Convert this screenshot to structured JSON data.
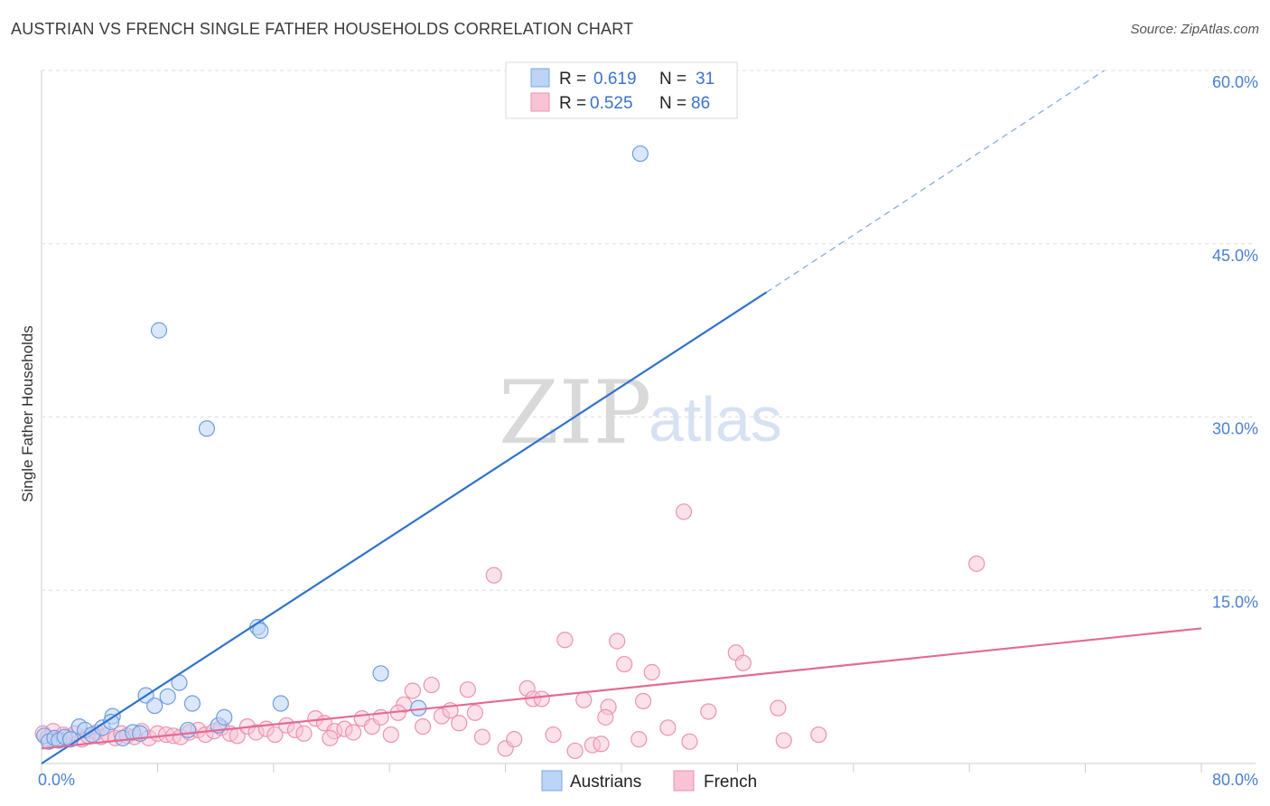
{
  "title": "AUSTRIAN VS FRENCH SINGLE FATHER HOUSEHOLDS CORRELATION CHART",
  "source": "Source: ZipAtlas.com",
  "watermark": {
    "zip": "ZIP",
    "atlas": "atlas"
  },
  "colors": {
    "austrians": "#3a78d4",
    "austrians_fill": "#bcd4f5",
    "french": "#e8759b",
    "french_fill": "#f8c3d4",
    "tick": "#4a7fd4",
    "grid": "#dddddd"
  },
  "chart_data": {
    "type": "scatter",
    "xlabel": "",
    "ylabel": "Single Father Households",
    "xlim": [
      0,
      80
    ],
    "ylim": [
      0,
      60
    ],
    "grid": true,
    "x_tick_labels": [
      {
        "value": 0,
        "label": "0.0%"
      },
      {
        "value": 80,
        "label": "80.0%"
      }
    ],
    "y_tick_labels": [
      {
        "value": 15,
        "label": "15.0%"
      },
      {
        "value": 30,
        "label": "30.0%"
      },
      {
        "value": 45,
        "label": "45.0%"
      },
      {
        "value": 60,
        "label": "60.0%"
      }
    ],
    "legend": [
      {
        "name": "Austrians",
        "r_label": "R =",
        "r": "0.619",
        "n_label": "N =",
        "n": "31"
      },
      {
        "name": "French",
        "r_label": "R =",
        "r": "0.525",
        "n_label": "N =",
        "n": "86"
      }
    ],
    "series": [
      {
        "name": "Austrians",
        "points": [
          [
            0.2,
            2.4
          ],
          [
            0.5,
            1.9
          ],
          [
            0.9,
            2.2
          ],
          [
            1.2,
            2.0
          ],
          [
            1.6,
            2.3
          ],
          [
            2.0,
            2.1
          ],
          [
            2.6,
            3.2
          ],
          [
            3.0,
            2.9
          ],
          [
            3.5,
            2.5
          ],
          [
            4.2,
            3.1
          ],
          [
            4.9,
            4.1
          ],
          [
            5.6,
            2.2
          ],
          [
            6.3,
            2.7
          ],
          [
            6.8,
            2.6
          ],
          [
            7.2,
            5.9
          ],
          [
            7.8,
            5.0
          ],
          [
            8.7,
            5.8
          ],
          [
            9.5,
            7.0
          ],
          [
            10.1,
            2.9
          ],
          [
            10.4,
            5.2
          ],
          [
            11.4,
            29.0
          ],
          [
            12.2,
            3.3
          ],
          [
            12.6,
            4.0
          ],
          [
            14.9,
            11.8
          ],
          [
            15.1,
            11.5
          ],
          [
            16.5,
            5.2
          ],
          [
            23.4,
            7.8
          ],
          [
            26.0,
            4.8
          ],
          [
            41.3,
            52.8
          ],
          [
            8.1,
            37.5
          ],
          [
            4.8,
            3.6
          ]
        ],
        "trend": {
          "x0": 0,
          "y0": 0,
          "x1": 50,
          "y1": 40.8,
          "dash_to_x": 73.3,
          "dash_to_y": 60
        }
      },
      {
        "name": "French",
        "points": [
          [
            0.1,
            2.6
          ],
          [
            0.4,
            2.2
          ],
          [
            0.8,
            2.8
          ],
          [
            1.1,
            2.1
          ],
          [
            1.5,
            2.5
          ],
          [
            1.9,
            2.3
          ],
          [
            2.3,
            2.6
          ],
          [
            2.8,
            2.1
          ],
          [
            3.2,
            2.4
          ],
          [
            3.8,
            2.7
          ],
          [
            4.1,
            2.3
          ],
          [
            4.6,
            2.5
          ],
          [
            5.1,
            2.2
          ],
          [
            5.5,
            2.6
          ],
          [
            5.9,
            2.4
          ],
          [
            6.4,
            2.3
          ],
          [
            6.9,
            2.8
          ],
          [
            7.4,
            2.2
          ],
          [
            8.0,
            2.6
          ],
          [
            8.6,
            2.5
          ],
          [
            9.1,
            2.4
          ],
          [
            9.6,
            2.3
          ],
          [
            10.2,
            2.7
          ],
          [
            10.8,
            2.9
          ],
          [
            11.3,
            2.5
          ],
          [
            11.9,
            2.8
          ],
          [
            12.4,
            3.1
          ],
          [
            13.0,
            2.6
          ],
          [
            13.5,
            2.4
          ],
          [
            14.2,
            3.2
          ],
          [
            14.8,
            2.7
          ],
          [
            15.5,
            3.0
          ],
          [
            16.1,
            2.5
          ],
          [
            16.9,
            3.3
          ],
          [
            17.5,
            2.9
          ],
          [
            18.1,
            2.6
          ],
          [
            18.9,
            3.9
          ],
          [
            19.5,
            3.5
          ],
          [
            20.2,
            2.8
          ],
          [
            20.9,
            3.0
          ],
          [
            21.5,
            2.7
          ],
          [
            22.1,
            3.9
          ],
          [
            22.8,
            3.2
          ],
          [
            23.4,
            4.0
          ],
          [
            24.1,
            2.5
          ],
          [
            25.0,
            5.1
          ],
          [
            25.6,
            6.3
          ],
          [
            26.3,
            3.2
          ],
          [
            26.9,
            6.8
          ],
          [
            27.6,
            4.1
          ],
          [
            28.2,
            4.6
          ],
          [
            28.8,
            3.5
          ],
          [
            29.4,
            6.4
          ],
          [
            29.9,
            4.4
          ],
          [
            30.4,
            2.3
          ],
          [
            31.2,
            16.3
          ],
          [
            32.0,
            1.3
          ],
          [
            32.6,
            2.1
          ],
          [
            33.5,
            6.5
          ],
          [
            33.9,
            5.6
          ],
          [
            34.5,
            5.6
          ],
          [
            35.3,
            2.5
          ],
          [
            36.1,
            10.7
          ],
          [
            36.8,
            1.1
          ],
          [
            37.4,
            5.5
          ],
          [
            38.0,
            1.6
          ],
          [
            38.6,
            1.7
          ],
          [
            39.1,
            4.9
          ],
          [
            39.7,
            10.6
          ],
          [
            40.2,
            8.6
          ],
          [
            41.2,
            2.1
          ],
          [
            42.1,
            7.9
          ],
          [
            43.2,
            3.1
          ],
          [
            44.3,
            21.8
          ],
          [
            44.7,
            1.9
          ],
          [
            47.9,
            9.6
          ],
          [
            48.4,
            8.7
          ],
          [
            50.8,
            4.8
          ],
          [
            51.2,
            2.0
          ],
          [
            53.6,
            2.5
          ],
          [
            64.5,
            17.3
          ],
          [
            46.0,
            4.5
          ],
          [
            38.9,
            4.0
          ],
          [
            41.5,
            5.4
          ],
          [
            24.6,
            4.4
          ],
          [
            19.9,
            2.2
          ]
        ],
        "trend": {
          "x0": 0,
          "y0": 1.3,
          "x1": 80,
          "y1": 11.7
        }
      }
    ]
  }
}
